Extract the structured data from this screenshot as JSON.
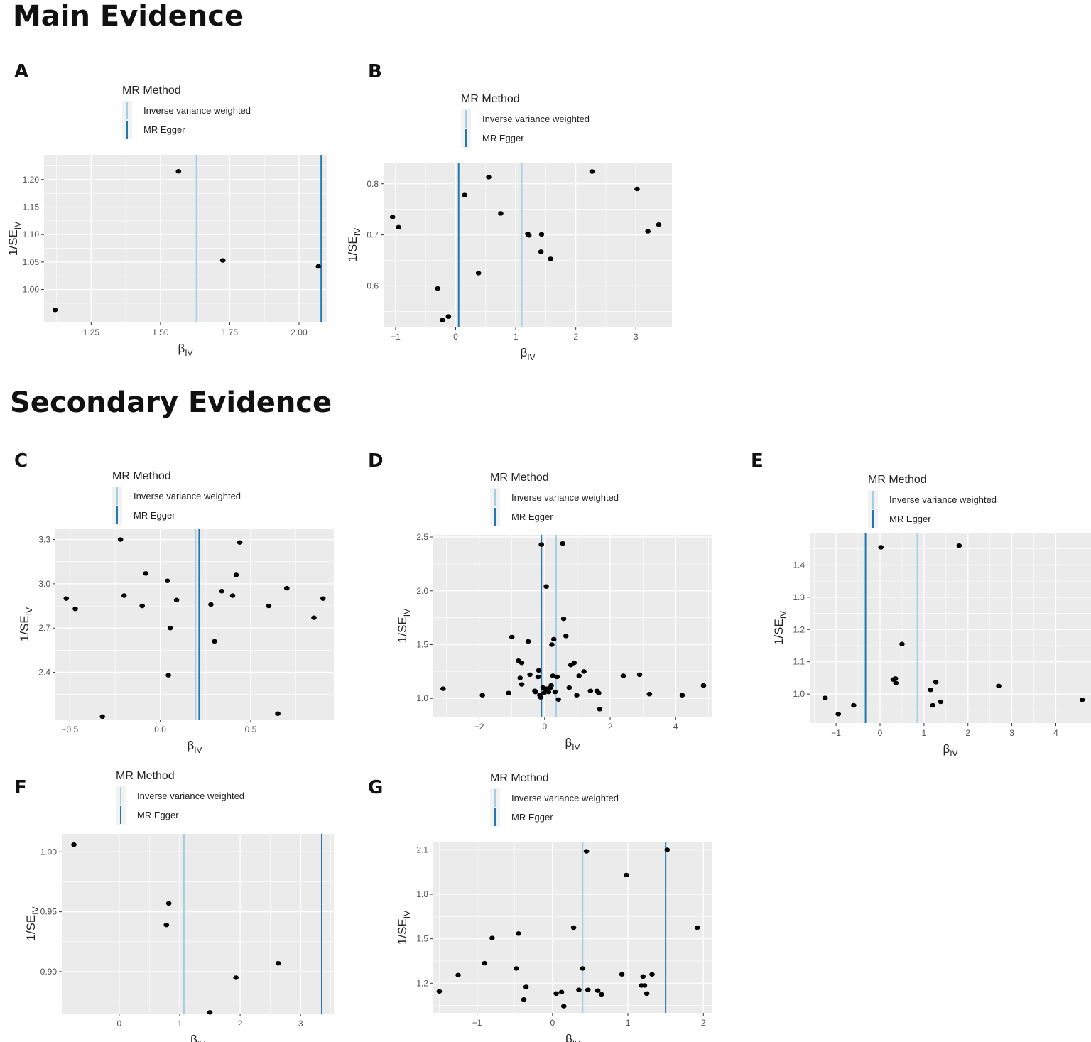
{
  "sections": {
    "main": "Main Evidence",
    "secondary": "Secondary Evidence"
  },
  "legend": {
    "title": "MR Method",
    "ivw": "Inverse variance weighted",
    "egger": "MR Egger"
  },
  "colors": {
    "ivw": "#a6cee3",
    "egger": "#1f78b4",
    "panel_bg": "#ebebeb",
    "grid": "#ffffff",
    "point": "#000000"
  },
  "chart_data": [
    {
      "panel": "A",
      "type": "scatter",
      "xlabel": "βIV",
      "ylabel": "1/SEIV",
      "xlim": [
        1.08,
        2.1
      ],
      "ylim": [
        0.94,
        1.245
      ],
      "xticks": [
        1.25,
        1.5,
        1.75,
        2.0
      ],
      "xtick_labels": [
        "1.25",
        "1.50",
        "1.75",
        "2.00"
      ],
      "yticks": [
        1.0,
        1.05,
        1.1,
        1.15,
        1.2
      ],
      "ytick_labels": [
        "1.00",
        "1.05",
        "1.10",
        "1.15",
        "1.20"
      ],
      "ivw": 1.63,
      "egger": 2.08,
      "points": [
        [
          1.12,
          0.963
        ],
        [
          1.565,
          1.215
        ],
        [
          1.725,
          1.053
        ],
        [
          2.07,
          1.042
        ]
      ]
    },
    {
      "panel": "B",
      "type": "scatter",
      "xlabel": "βIV",
      "ylabel": "1/SEIV",
      "xlim": [
        -1.2,
        3.6
      ],
      "ylim": [
        0.52,
        0.84
      ],
      "xticks": [
        -1,
        0,
        1,
        2,
        3
      ],
      "xtick_labels": [
        "−1",
        "0",
        "1",
        "2",
        "3"
      ],
      "yticks": [
        0.6,
        0.7,
        0.8
      ],
      "ytick_labels": [
        "0.6",
        "0.7",
        "0.8"
      ],
      "ivw": 1.1,
      "egger": 0.05,
      "points": [
        [
          -1.05,
          0.735
        ],
        [
          -0.95,
          0.715
        ],
        [
          -0.3,
          0.595
        ],
        [
          -0.22,
          0.533
        ],
        [
          -0.12,
          0.54
        ],
        [
          0.15,
          0.778
        ],
        [
          0.38,
          0.625
        ],
        [
          0.55,
          0.813
        ],
        [
          0.75,
          0.742
        ],
        [
          1.2,
          0.702
        ],
        [
          1.22,
          0.699
        ],
        [
          1.42,
          0.667
        ],
        [
          1.43,
          0.701
        ],
        [
          1.58,
          0.653
        ],
        [
          2.27,
          0.824
        ],
        [
          3.02,
          0.79
        ],
        [
          3.2,
          0.707
        ],
        [
          3.38,
          0.72
        ]
      ]
    },
    {
      "panel": "C",
      "type": "scatter",
      "xlabel": "βIV",
      "ylabel": "1/SEIV",
      "xlim": [
        -0.58,
        0.96
      ],
      "ylim": [
        2.08,
        3.37
      ],
      "xticks": [
        -0.5,
        0,
        0.5
      ],
      "xtick_labels": [
        "−0.5",
        "0.0",
        "0.5"
      ],
      "yticks": [
        2.4,
        2.7,
        3.0,
        3.3
      ],
      "ytick_labels": [
        "2.4",
        "2.7",
        "3.0",
        "3.3"
      ],
      "ivw": 0.195,
      "egger": 0.215,
      "points": [
        [
          -0.52,
          2.9
        ],
        [
          -0.47,
          2.83
        ],
        [
          -0.32,
          2.1
        ],
        [
          -0.22,
          3.3
        ],
        [
          -0.2,
          2.92
        ],
        [
          -0.1,
          2.85
        ],
        [
          -0.08,
          3.07
        ],
        [
          0.04,
          3.02
        ],
        [
          0.045,
          2.38
        ],
        [
          0.055,
          2.7
        ],
        [
          0.09,
          2.89
        ],
        [
          0.28,
          2.86
        ],
        [
          0.3,
          2.61
        ],
        [
          0.34,
          2.95
        ],
        [
          0.4,
          2.92
        ],
        [
          0.42,
          3.06
        ],
        [
          0.44,
          3.28
        ],
        [
          0.6,
          2.85
        ],
        [
          0.65,
          2.12
        ],
        [
          0.7,
          2.97
        ],
        [
          0.85,
          2.77
        ],
        [
          0.9,
          2.9
        ]
      ]
    },
    {
      "panel": "D",
      "type": "scatter",
      "xlabel": "βIV",
      "ylabel": "1/SEIV",
      "xlim": [
        -3.4,
        5.1
      ],
      "ylim": [
        0.83,
        2.52
      ],
      "xticks": [
        -2,
        0,
        2,
        4
      ],
      "xtick_labels": [
        "−2",
        "0",
        "2",
        "4"
      ],
      "yticks": [
        1.0,
        1.5,
        2.0,
        2.5
      ],
      "ytick_labels": [
        "1.0",
        "1.5",
        "2.0",
        "2.5"
      ],
      "ivw": 0.35,
      "egger": -0.1,
      "points": [
        [
          -3.1,
          1.09
        ],
        [
          -1.9,
          1.03
        ],
        [
          -1.1,
          1.05
        ],
        [
          -1.0,
          1.57
        ],
        [
          -0.8,
          1.35
        ],
        [
          -0.75,
          1.19
        ],
        [
          -0.7,
          1.33
        ],
        [
          -0.7,
          1.13
        ],
        [
          -0.5,
          1.53
        ],
        [
          -0.45,
          1.22
        ],
        [
          -0.3,
          1.07
        ],
        [
          -0.28,
          1.06
        ],
        [
          -0.2,
          1.2
        ],
        [
          -0.18,
          1.26
        ],
        [
          -0.15,
          1.03
        ],
        [
          -0.12,
          1.01
        ],
        [
          -0.1,
          2.43
        ],
        [
          -0.05,
          1.1
        ],
        [
          -0.02,
          1.05
        ],
        [
          0.02,
          1.08
        ],
        [
          0.05,
          1.09
        ],
        [
          0.05,
          2.04
        ],
        [
          0.12,
          1.06
        ],
        [
          0.18,
          1.1
        ],
        [
          0.2,
          1.12
        ],
        [
          0.22,
          1.5
        ],
        [
          0.25,
          1.21
        ],
        [
          0.28,
          1.55
        ],
        [
          0.32,
          1.06
        ],
        [
          0.38,
          1.2
        ],
        [
          0.42,
          0.99
        ],
        [
          0.55,
          2.44
        ],
        [
          0.58,
          1.74
        ],
        [
          0.65,
          1.58
        ],
        [
          0.75,
          1.1
        ],
        [
          0.8,
          1.31
        ],
        [
          0.9,
          1.33
        ],
        [
          0.98,
          1.03
        ],
        [
          1.05,
          1.21
        ],
        [
          1.2,
          1.25
        ],
        [
          1.4,
          1.07
        ],
        [
          1.6,
          1.07
        ],
        [
          1.65,
          1.05
        ],
        [
          1.68,
          0.9
        ],
        [
          2.4,
          1.21
        ],
        [
          2.9,
          1.22
        ],
        [
          3.2,
          1.04
        ],
        [
          4.2,
          1.03
        ],
        [
          4.85,
          1.12
        ]
      ]
    },
    {
      "panel": "E",
      "type": "scatter",
      "xlabel": "βIV",
      "ylabel": "1/SEIV",
      "xlim": [
        -1.6,
        4.8
      ],
      "ylim": [
        0.91,
        1.5
      ],
      "xticks": [
        -1,
        0,
        1,
        2,
        3,
        4
      ],
      "xtick_labels": [
        "−1",
        "0",
        "1",
        "2",
        "3",
        "4"
      ],
      "yticks": [
        1.0,
        1.1,
        1.2,
        1.3,
        1.4
      ],
      "ytick_labels": [
        "1.0",
        "1.1",
        "1.2",
        "1.3",
        "1.4"
      ],
      "ivw": 0.85,
      "egger": -0.33,
      "points": [
        [
          -1.25,
          0.988
        ],
        [
          -0.95,
          0.938
        ],
        [
          -0.6,
          0.965
        ],
        [
          0.02,
          1.455
        ],
        [
          0.3,
          1.045
        ],
        [
          0.35,
          1.048
        ],
        [
          0.36,
          1.034
        ],
        [
          0.5,
          1.155
        ],
        [
          1.15,
          1.013
        ],
        [
          1.2,
          0.965
        ],
        [
          1.27,
          1.037
        ],
        [
          1.38,
          0.976
        ],
        [
          1.8,
          1.46
        ],
        [
          2.7,
          1.025
        ],
        [
          4.6,
          0.982
        ]
      ]
    },
    {
      "panel": "F",
      "type": "scatter",
      "xlabel": "βIV",
      "ylabel": "1/SEIV",
      "xlim": [
        -0.95,
        3.55
      ],
      "ylim": [
        0.865,
        1.015
      ],
      "xticks": [
        0,
        1,
        2,
        3
      ],
      "xtick_labels": [
        "0",
        "1",
        "2",
        "3"
      ],
      "yticks": [
        0.9,
        0.95,
        1.0
      ],
      "ytick_labels": [
        "0.90",
        "0.95",
        "1.00"
      ],
      "ivw": 1.07,
      "egger": 3.35,
      "points": [
        [
          -0.75,
          1.006
        ],
        [
          0.78,
          0.939
        ],
        [
          0.82,
          0.957
        ],
        [
          1.5,
          0.866
        ],
        [
          1.93,
          0.895
        ],
        [
          2.63,
          0.907
        ]
      ]
    },
    {
      "panel": "G",
      "type": "scatter",
      "xlabel": "βIV",
      "ylabel": "1/SEIV",
      "xlim": [
        -1.58,
        2.12
      ],
      "ylim": [
        1.0,
        2.15
      ],
      "xticks": [
        -1,
        0,
        1,
        2
      ],
      "xtick_labels": [
        "−1",
        "0",
        "1",
        "2"
      ],
      "yticks": [
        1.2,
        1.5,
        1.8,
        2.1
      ],
      "ytick_labels": [
        "1.2",
        "1.5",
        "1.8",
        "2.1"
      ],
      "ivw": 0.4,
      "egger": 1.5,
      "points": [
        [
          -1.5,
          1.145
        ],
        [
          -1.25,
          1.255
        ],
        [
          -0.9,
          1.335
        ],
        [
          -0.8,
          1.505
        ],
        [
          -0.45,
          1.535
        ],
        [
          -0.48,
          1.3
        ],
        [
          -0.38,
          1.09
        ],
        [
          -0.35,
          1.175
        ],
        [
          0.05,
          1.13
        ],
        [
          0.12,
          1.14
        ],
        [
          0.15,
          1.045
        ],
        [
          0.28,
          1.575
        ],
        [
          0.35,
          1.155
        ],
        [
          0.4,
          1.3
        ],
        [
          0.45,
          2.09
        ],
        [
          0.47,
          1.155
        ],
        [
          0.6,
          1.15
        ],
        [
          0.65,
          1.125
        ],
        [
          0.92,
          1.26
        ],
        [
          0.98,
          1.93
        ],
        [
          1.18,
          1.185
        ],
        [
          1.2,
          1.245
        ],
        [
          1.22,
          1.185
        ],
        [
          1.25,
          1.13
        ],
        [
          1.32,
          1.26
        ],
        [
          1.52,
          2.1
        ],
        [
          1.92,
          1.575
        ]
      ]
    }
  ]
}
